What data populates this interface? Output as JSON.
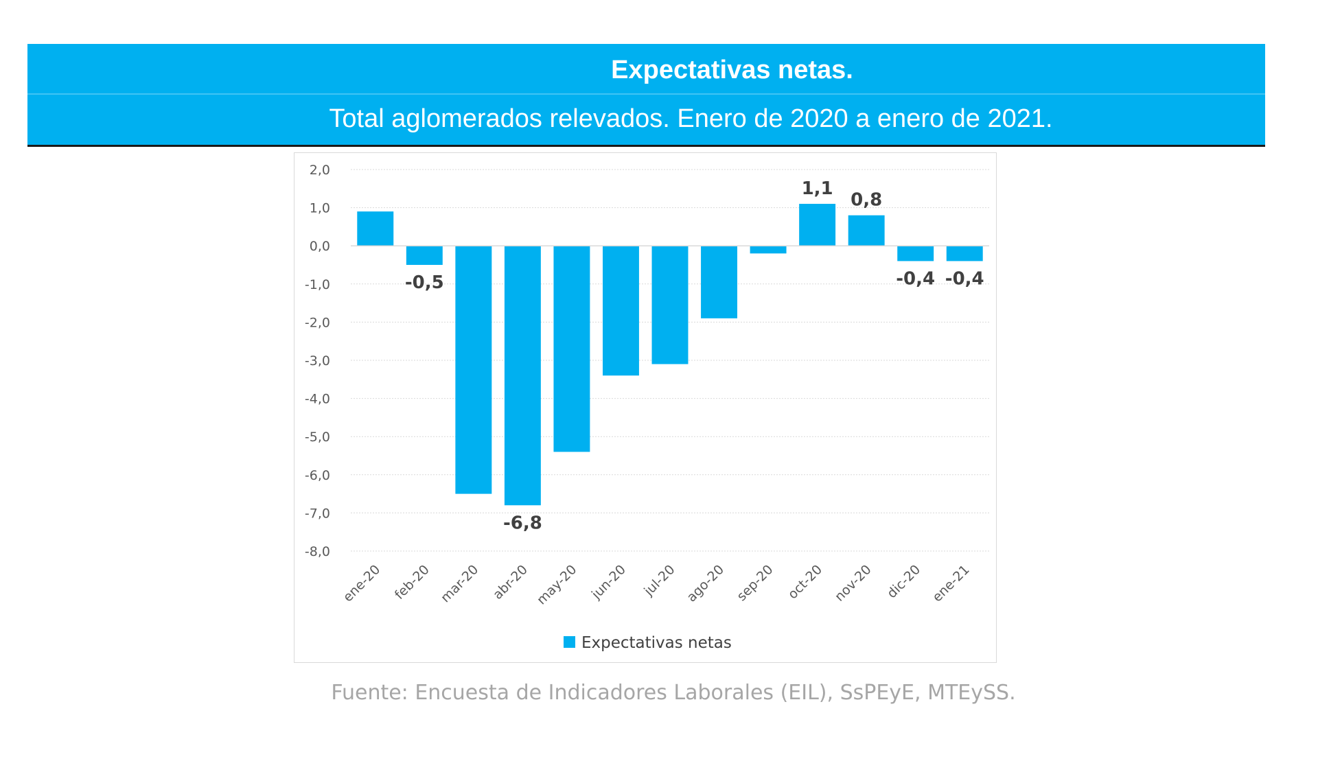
{
  "header": {
    "title": "Expectativas netas.",
    "subtitle": "Total aglomerados relevados. Enero de 2020 a enero de 2021."
  },
  "colors": {
    "banner": "#00b0f0",
    "bar": "#00b0f0",
    "gridline": "#d9d9d9",
    "source_text": "#a6a6a6"
  },
  "chart_data": {
    "type": "bar",
    "categories": [
      "ene-20",
      "feb-20",
      "mar-20",
      "abr-20",
      "may-20",
      "jun-20",
      "jul-20",
      "ago-20",
      "sep-20",
      "oct-20",
      "nov-20",
      "dic-20",
      "ene-21"
    ],
    "series": [
      {
        "name": "Expectativas netas",
        "values": [
          0.9,
          -0.5,
          -6.5,
          -6.8,
          -5.4,
          -3.4,
          -3.1,
          -1.9,
          -0.2,
          1.1,
          0.8,
          -0.4,
          -0.4
        ],
        "data_labels": [
          "",
          "-0,5",
          "",
          "-6,8",
          "",
          "",
          "",
          "",
          "",
          "1,1",
          "0,8",
          "-0,4",
          "-0,4"
        ]
      }
    ],
    "ylim": [
      -8,
      2
    ],
    "yticks": [
      "2,0",
      "1,0",
      "0,0",
      "-1,0",
      "-2,0",
      "-3,0",
      "-4,0",
      "-5,0",
      "-6,0",
      "-7,0",
      "-8,0"
    ],
    "ytick_values": [
      2,
      1,
      0,
      -1,
      -2,
      -3,
      -4,
      -5,
      -6,
      -7,
      -8
    ],
    "grid": true,
    "legend": "bottom",
    "xlabel": "",
    "ylabel": ""
  },
  "footer": {
    "source": "Fuente: Encuesta de Indicadores Laborales (EIL), SsPEyE, MTEySS."
  }
}
